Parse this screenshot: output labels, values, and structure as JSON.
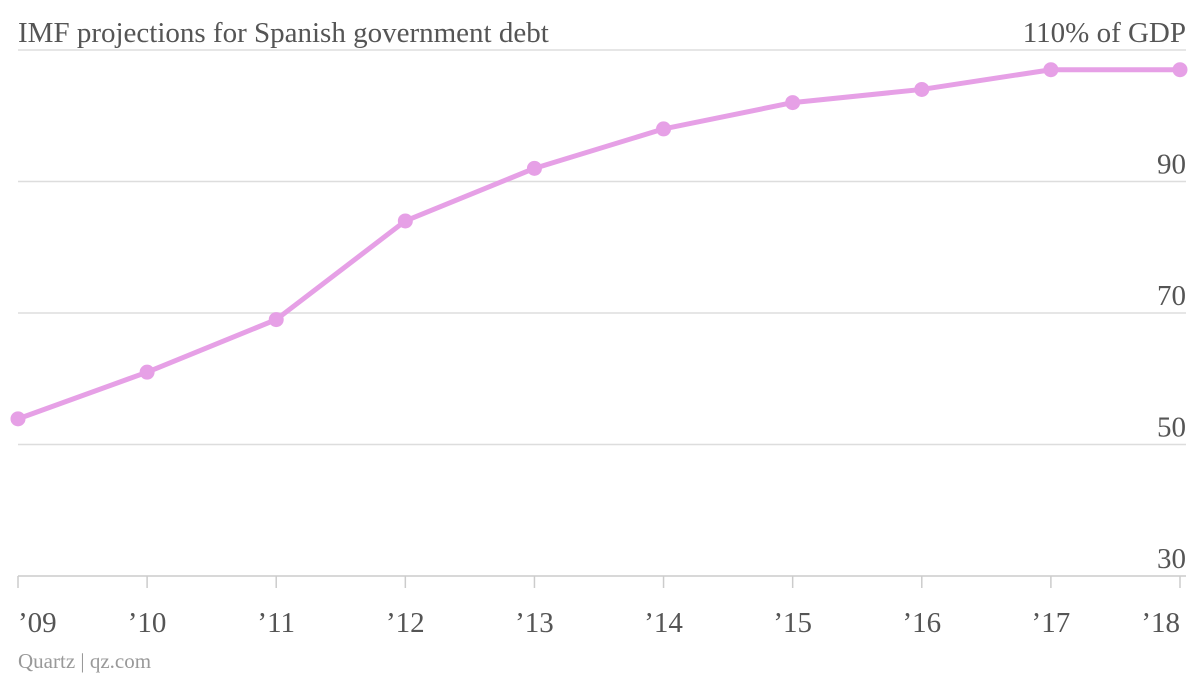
{
  "chart_data": {
    "type": "line",
    "title": "IMF projections for Spanish government debt",
    "y_unit_suffix": "% of GDP",
    "categories": [
      "’09",
      "’10",
      "’11",
      "’12",
      "’13",
      "’14",
      "’15",
      "’16",
      "’17",
      "’18"
    ],
    "series": [
      {
        "values": [
          53.9,
          61.0,
          69.0,
          84.0,
          92.0,
          98.0,
          102.0,
          104.0,
          107.0,
          107.0
        ]
      }
    ],
    "ylim": [
      30,
      110
    ],
    "y_ticks": [
      30,
      50,
      70,
      90,
      110
    ],
    "y_tick_labels": [
      "30",
      "50",
      "70",
      "90",
      "110% of GDP"
    ],
    "y_axis_side": "right",
    "grid": true,
    "line_color": "#e6a0e6"
  },
  "credit": "Quartz | qz.com"
}
